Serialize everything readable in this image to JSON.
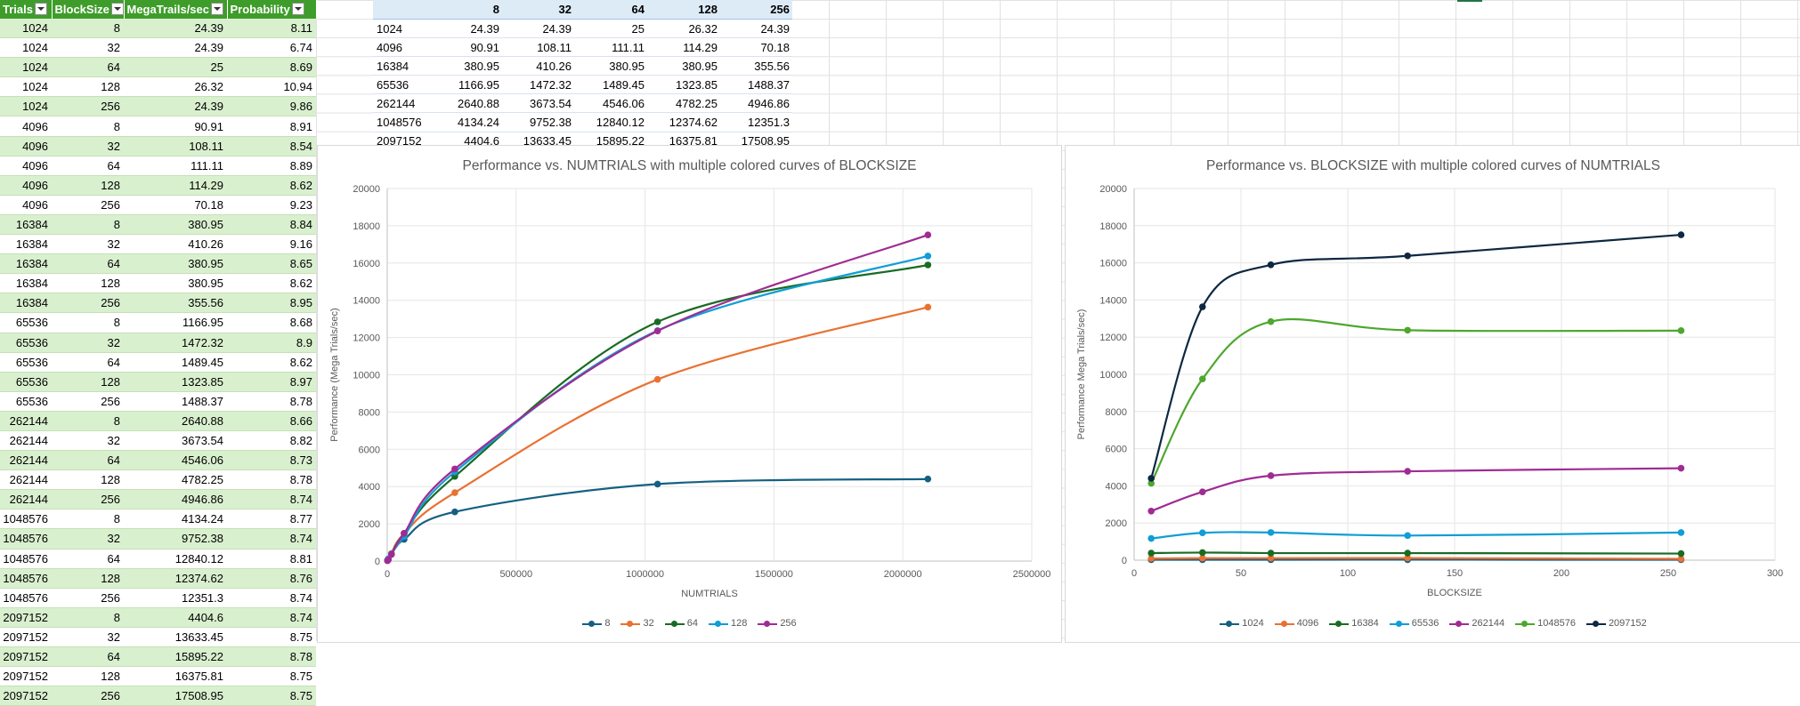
{
  "left_table": {
    "headers": [
      "Trials",
      "BlockSize",
      "MegaTrails/sec",
      "Probability"
    ],
    "rows": [
      [
        "1024",
        "8",
        "24.39",
        "8.11"
      ],
      [
        "1024",
        "32",
        "24.39",
        "6.74"
      ],
      [
        "1024",
        "64",
        "25",
        "8.69"
      ],
      [
        "1024",
        "128",
        "26.32",
        "10.94"
      ],
      [
        "1024",
        "256",
        "24.39",
        "9.86"
      ],
      [
        "4096",
        "8",
        "90.91",
        "8.91"
      ],
      [
        "4096",
        "32",
        "108.11",
        "8.54"
      ],
      [
        "4096",
        "64",
        "111.11",
        "8.89"
      ],
      [
        "4096",
        "128",
        "114.29",
        "8.62"
      ],
      [
        "4096",
        "256",
        "70.18",
        "9.23"
      ],
      [
        "16384",
        "8",
        "380.95",
        "8.84"
      ],
      [
        "16384",
        "32",
        "410.26",
        "9.16"
      ],
      [
        "16384",
        "64",
        "380.95",
        "8.65"
      ],
      [
        "16384",
        "128",
        "380.95",
        "8.62"
      ],
      [
        "16384",
        "256",
        "355.56",
        "8.95"
      ],
      [
        "65536",
        "8",
        "1166.95",
        "8.68"
      ],
      [
        "65536",
        "32",
        "1472.32",
        "8.9"
      ],
      [
        "65536",
        "64",
        "1489.45",
        "8.62"
      ],
      [
        "65536",
        "128",
        "1323.85",
        "8.97"
      ],
      [
        "65536",
        "256",
        "1488.37",
        "8.78"
      ],
      [
        "262144",
        "8",
        "2640.88",
        "8.66"
      ],
      [
        "262144",
        "32",
        "3673.54",
        "8.82"
      ],
      [
        "262144",
        "64",
        "4546.06",
        "8.73"
      ],
      [
        "262144",
        "128",
        "4782.25",
        "8.78"
      ],
      [
        "262144",
        "256",
        "4946.86",
        "8.74"
      ],
      [
        "1048576",
        "8",
        "4134.24",
        "8.77"
      ],
      [
        "1048576",
        "32",
        "9752.38",
        "8.74"
      ],
      [
        "1048576",
        "64",
        "12840.12",
        "8.81"
      ],
      [
        "1048576",
        "128",
        "12374.62",
        "8.76"
      ],
      [
        "1048576",
        "256",
        "12351.3",
        "8.74"
      ],
      [
        "2097152",
        "8",
        "4404.6",
        "8.74"
      ],
      [
        "2097152",
        "32",
        "13633.45",
        "8.75"
      ],
      [
        "2097152",
        "64",
        "15895.22",
        "8.78"
      ],
      [
        "2097152",
        "128",
        "16375.81",
        "8.75"
      ],
      [
        "2097152",
        "256",
        "17508.95",
        "8.75"
      ]
    ]
  },
  "top_table": {
    "headers": [
      "",
      "8",
      "32",
      "64",
      "128",
      "256"
    ],
    "rows": [
      [
        "1024",
        "24.39",
        "24.39",
        "25",
        "26.32",
        "24.39"
      ],
      [
        "4096",
        "90.91",
        "108.11",
        "111.11",
        "114.29",
        "70.18"
      ],
      [
        "16384",
        "380.95",
        "410.26",
        "380.95",
        "380.95",
        "355.56"
      ],
      [
        "65536",
        "1166.95",
        "1472.32",
        "1489.45",
        "1323.85",
        "1488.37"
      ],
      [
        "262144",
        "2640.88",
        "3673.54",
        "4546.06",
        "4782.25",
        "4946.86"
      ],
      [
        "1048576",
        "4134.24",
        "9752.38",
        "12840.12",
        "12374.62",
        "12351.3"
      ],
      [
        "2097152",
        "4404.6",
        "13633.45",
        "15895.22",
        "16375.81",
        "17508.95"
      ]
    ]
  },
  "chart_data": [
    {
      "type": "line",
      "title": "Performance vs. NUMTRIALS with multiple colored curves of BLOCKSIZE",
      "xlabel": "NUMTRIALS",
      "ylabel": "Performance (Mega Trials/sec)",
      "xlim": [
        0,
        2500000
      ],
      "ylim": [
        0,
        20000
      ],
      "xticks": [
        "0",
        "500000",
        "1000000",
        "1500000",
        "2000000",
        "2500000"
      ],
      "yticks": [
        "0",
        "2000",
        "4000",
        "6000",
        "8000",
        "10000",
        "12000",
        "14000",
        "16000",
        "18000",
        "20000"
      ],
      "x": [
        1024,
        4096,
        16384,
        65536,
        262144,
        1048576,
        2097152
      ],
      "legend_position": "bottom",
      "grid": true,
      "series": [
        {
          "name": "8",
          "color": "#156082",
          "values": [
            24.39,
            90.91,
            380.95,
            1166.95,
            2640.88,
            4134.24,
            4404.6
          ]
        },
        {
          "name": "32",
          "color": "#e97132",
          "values": [
            24.39,
            108.11,
            410.26,
            1472.32,
            3673.54,
            9752.38,
            13633.45
          ]
        },
        {
          "name": "64",
          "color": "#196b24",
          "values": [
            25,
            111.11,
            380.95,
            1489.45,
            4546.06,
            12840.12,
            15895.22
          ]
        },
        {
          "name": "128",
          "color": "#0f9ed5",
          "values": [
            26.32,
            114.29,
            380.95,
            1323.85,
            4782.25,
            12374.62,
            16375.81
          ]
        },
        {
          "name": "256",
          "color": "#a02b93",
          "values": [
            24.39,
            70.18,
            355.56,
            1488.37,
            4946.86,
            12351.3,
            17508.95
          ]
        }
      ]
    },
    {
      "type": "line",
      "title": "Performance vs. BLOCKSIZE with multiple colored curves of NUMTRIALS",
      "xlabel": "BLOCKSIZE",
      "ylabel": "Performance Mega Trials/sec)",
      "xlim": [
        0,
        300
      ],
      "ylim": [
        0,
        20000
      ],
      "xticks": [
        "0",
        "50",
        "100",
        "150",
        "200",
        "250",
        "300"
      ],
      "yticks": [
        "0",
        "2000",
        "4000",
        "6000",
        "8000",
        "10000",
        "12000",
        "14000",
        "16000",
        "18000",
        "20000"
      ],
      "x": [
        8,
        32,
        64,
        128,
        256
      ],
      "legend_position": "bottom",
      "grid": true,
      "series": [
        {
          "name": "1024",
          "color": "#156082",
          "values": [
            24.39,
            24.39,
            25,
            26.32,
            24.39
          ]
        },
        {
          "name": "4096",
          "color": "#e97132",
          "values": [
            90.91,
            108.11,
            111.11,
            114.29,
            70.18
          ]
        },
        {
          "name": "16384",
          "color": "#196b24",
          "values": [
            380.95,
            410.26,
            380.95,
            380.95,
            355.56
          ]
        },
        {
          "name": "65536",
          "color": "#0f9ed5",
          "values": [
            1166.95,
            1472.32,
            1489.45,
            1323.85,
            1488.37
          ]
        },
        {
          "name": "262144",
          "color": "#a02b93",
          "values": [
            2640.88,
            3673.54,
            4546.06,
            4782.25,
            4946.86
          ]
        },
        {
          "name": "1048576",
          "color": "#4ea72e",
          "values": [
            4134.24,
            9752.38,
            12840.12,
            12374.62,
            12351.3
          ]
        },
        {
          "name": "2097152",
          "color": "#0e2841",
          "values": [
            4404.6,
            13633.45,
            15895.22,
            16375.81,
            17508.95
          ]
        }
      ]
    }
  ]
}
